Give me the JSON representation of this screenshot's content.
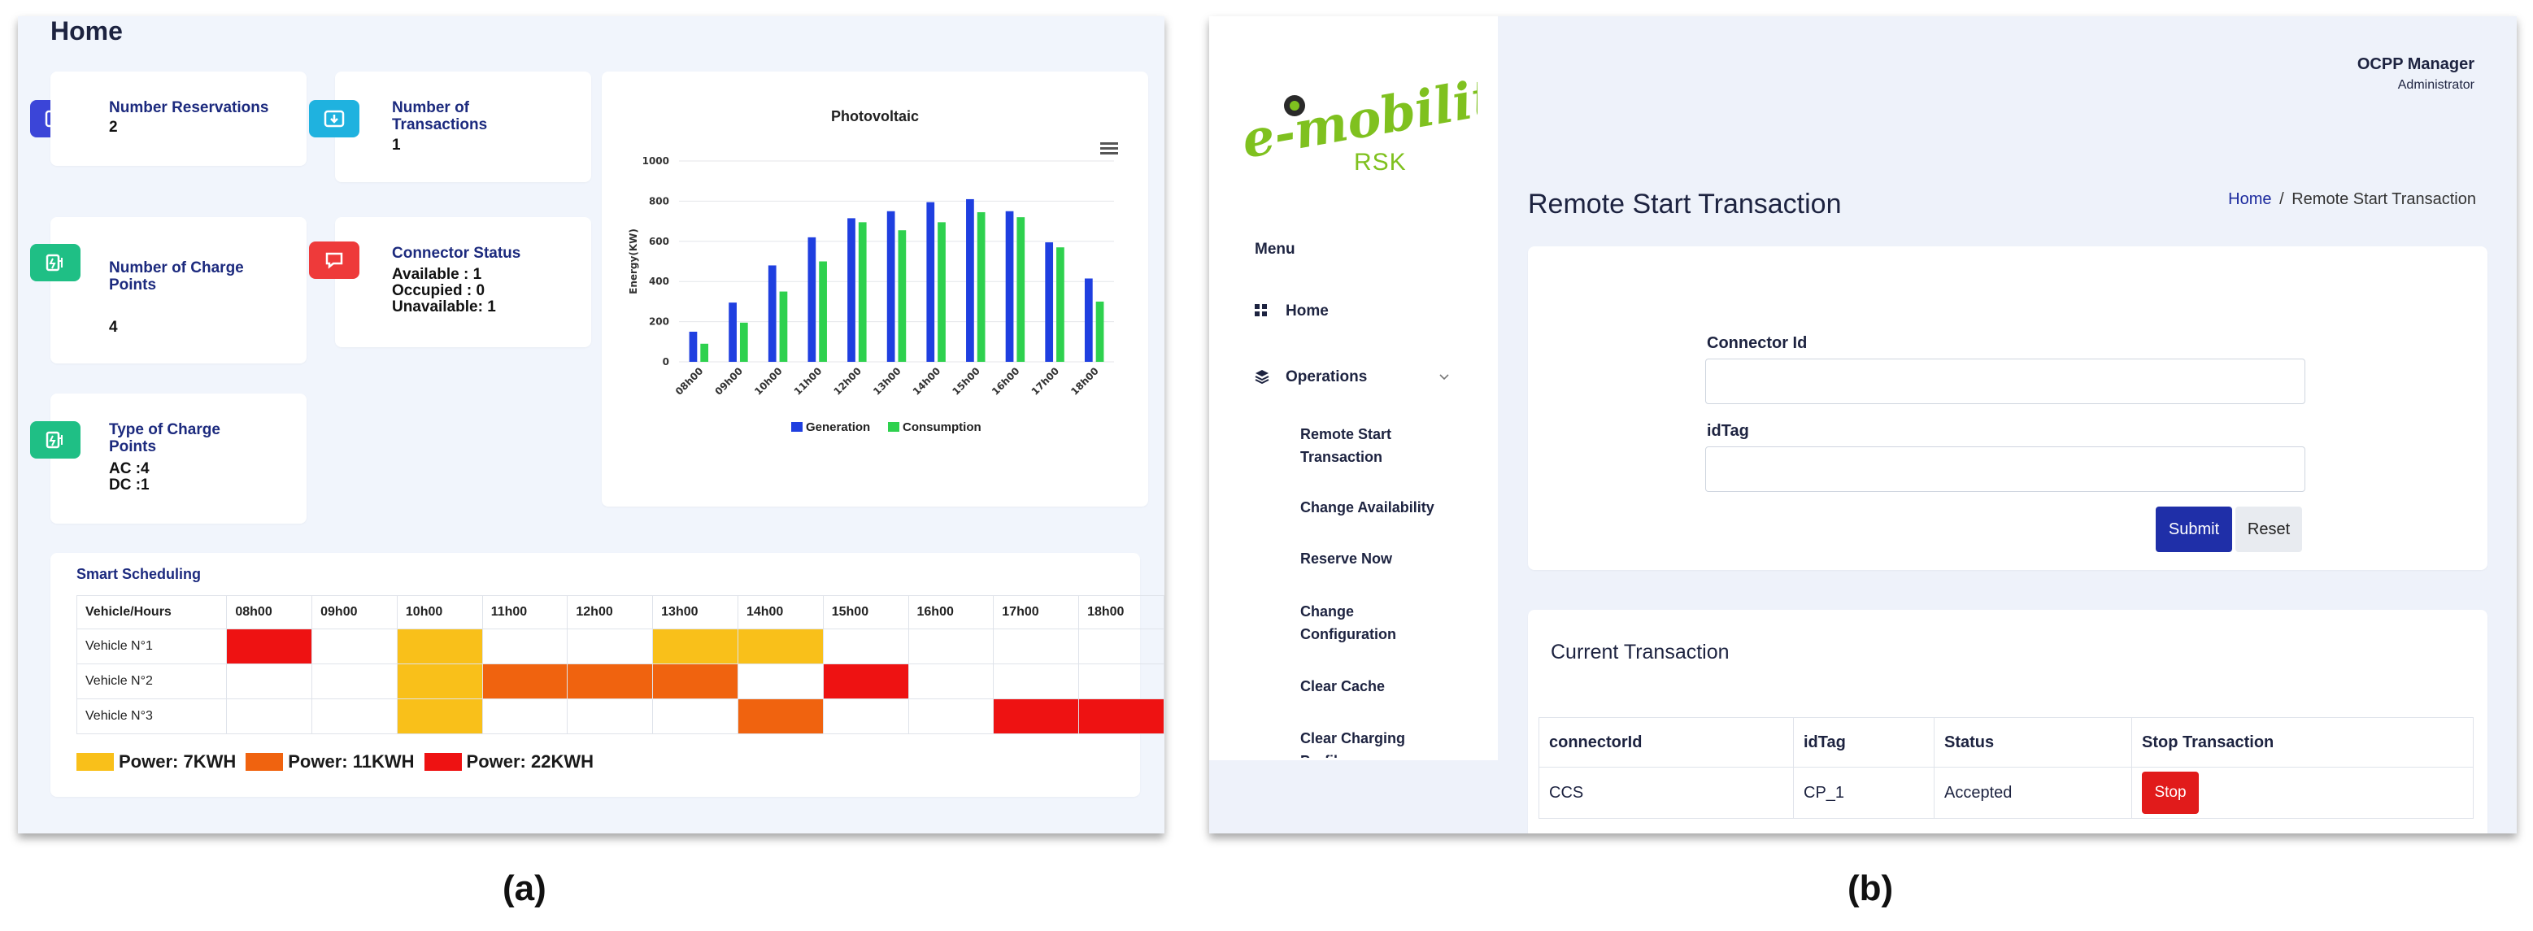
{
  "panel_a": {
    "title": "Home",
    "cards": {
      "reservations": {
        "label": "Number Reservations",
        "value": "2",
        "icon": "calendar-check-icon",
        "color": "#3b45d8"
      },
      "transactions": {
        "label": "Number of Transactions",
        "value": "1",
        "icon": "download-icon",
        "color": "#1fb2df"
      },
      "charge_points": {
        "label": "Number of Charge Points",
        "value": "4",
        "icon": "ev-charger-icon",
        "color": "#1fbf85"
      },
      "connector_status": {
        "label": "Connector Status",
        "lines": [
          "Available : 1",
          "Occupied : 0",
          "Unavailable: 1"
        ],
        "icon": "chat-icon",
        "color": "#ee3a3a"
      },
      "charge_types": {
        "label": "Type of Charge Points",
        "lines": [
          "AC :4",
          "DC :1"
        ],
        "icon": "ev-charger-icon",
        "color": "#1fbf85"
      }
    },
    "chart_menu_icon": "hamburger-menu-icon",
    "chart_data": {
      "type": "bar",
      "title": "Photovoltaic",
      "ylabel": "Energy(KW)",
      "xlabel": "",
      "ylim": [
        0,
        1000
      ],
      "yticks": [
        0,
        200,
        400,
        600,
        800,
        1000
      ],
      "categories": [
        "08h00",
        "09h00",
        "10h00",
        "11h00",
        "12h00",
        "13h00",
        "14h00",
        "15h00",
        "16h00",
        "17h00",
        "18h00"
      ],
      "series": [
        {
          "name": "Generation",
          "color": "#1f3fe0",
          "values": [
            150,
            295,
            480,
            620,
            715,
            750,
            795,
            810,
            750,
            595,
            415
          ]
        },
        {
          "name": "Consumption",
          "color": "#2ed14e",
          "values": [
            90,
            195,
            350,
            500,
            695,
            655,
            695,
            745,
            720,
            570,
            300
          ]
        }
      ],
      "legend": "bottom",
      "grid": true
    },
    "scheduling": {
      "title": "Smart Scheduling",
      "header": [
        "Vehicle/Hours",
        "08h00",
        "09h00",
        "10h00",
        "11h00",
        "12h00",
        "13h00",
        "14h00",
        "15h00",
        "16h00",
        "17h00",
        "18h00"
      ],
      "rows": [
        {
          "label": "Vehicle N°1",
          "cells": [
            "22",
            "",
            "7",
            "",
            "",
            "7",
            "7",
            "",
            "",
            "",
            ""
          ]
        },
        {
          "label": "Vehicle N°2",
          "cells": [
            "",
            "",
            "7",
            "11",
            "11",
            "11",
            "",
            "22",
            "",
            "",
            ""
          ]
        },
        {
          "label": "Vehicle N°3",
          "cells": [
            "",
            "",
            "7",
            "",
            "",
            "",
            "11",
            "",
            "",
            "22",
            "22"
          ]
        }
      ],
      "legend": [
        {
          "key": "7",
          "label": "Power: 7KWH",
          "color": "#f9c01a"
        },
        {
          "key": "11",
          "label": "Power: 11KWH",
          "color": "#f0630f"
        },
        {
          "key": "22",
          "label": "Power: 22KWH",
          "color": "#ee1212"
        }
      ]
    }
  },
  "panel_b": {
    "logo": {
      "text": "e-mobility",
      "sub": "RSK"
    },
    "user": {
      "name": "OCPP Manager",
      "role": "Administrator"
    },
    "page_title": "Remote Start Transaction",
    "breadcrumb": {
      "home": "Home",
      "separator": "/",
      "current": "Remote Start Transaction"
    },
    "menu": {
      "heading": "Menu",
      "home": "Home",
      "operations": "Operations",
      "sub_items": [
        "Remote Start Transaction",
        "Change Availability",
        "Reserve Now",
        "Change Configuration",
        "Clear Cache",
        "Clear Charging Profile"
      ]
    },
    "form": {
      "connector_label": "Connector Id",
      "connector_value": "",
      "idtag_label": "idTag",
      "idtag_value": "",
      "submit": "Submit",
      "reset": "Reset"
    },
    "current": {
      "title": "Current Transaction",
      "columns": [
        "connectorId",
        "idTag",
        "Status",
        "Stop Transaction"
      ],
      "rows": [
        {
          "connectorId": "CCS",
          "idTag": "CP_1",
          "status": "Accepted",
          "action": "Stop"
        }
      ]
    }
  },
  "captions": [
    "(a)",
    "(b)"
  ]
}
